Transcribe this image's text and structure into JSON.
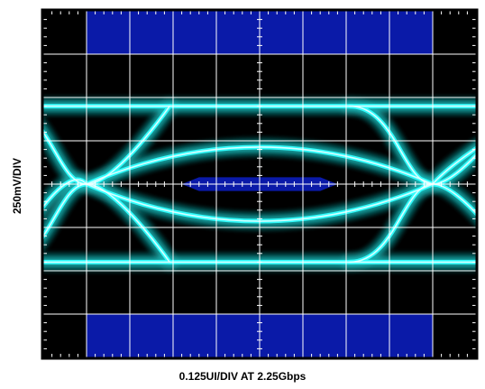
{
  "chart_data": {
    "type": "eye-diagram",
    "title": "",
    "xlabel": "0.125UI/DIV AT 2.25Gbps",
    "ylabel": "250mV/DIV",
    "x_divisions": 10,
    "y_divisions": 8,
    "x_per_div_UI": 0.125,
    "y_per_div_mV": 250,
    "data_rate_Gbps": 2.25,
    "xlim_UI": [
      -0.625,
      0.625
    ],
    "ylim_mV": [
      -1000,
      1000
    ],
    "grid": true,
    "legend": "none",
    "signal": {
      "high_level_mV": 450,
      "low_level_mV": -450,
      "crossing_UI": [
        -0.5,
        0.5
      ],
      "crossing_mV": 0,
      "trace_color": "#33ffff"
    },
    "masks": [
      {
        "name": "top-mask",
        "x_UI": [
          -0.5,
          0.5
        ],
        "y_mV": [
          750,
          1000
        ]
      },
      {
        "name": "bottom-mask",
        "x_UI": [
          -0.5,
          0.5
        ],
        "y_mV": [
          -1000,
          -750
        ]
      },
      {
        "name": "center-mask",
        "polygon": [
          [
            -0.225,
            0
          ],
          [
            -0.175,
            40
          ],
          [
            0.175,
            40
          ],
          [
            0.225,
            0
          ],
          [
            0.175,
            -40
          ],
          [
            -0.175,
            -40
          ]
        ]
      }
    ],
    "colors": {
      "mask": "#0a1aa8",
      "background": "#000000",
      "grid": "#ffffff"
    }
  }
}
